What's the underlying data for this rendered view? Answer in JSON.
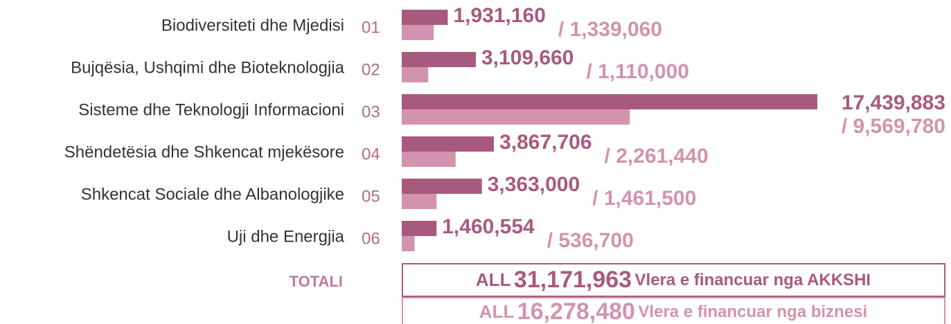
{
  "chart_data": {
    "type": "bar",
    "orientation": "horizontal",
    "categories": [
      "Biodiversiteti dhe Mjedisi",
      "Bujqësia, Ushqimi dhe Bioteknologjia",
      "Sisteme dhe Teknologji Informacioni",
      "Shëndetësia dhe Shkencat mjekësore",
      "Shkencat Sociale dhe Albanologjike",
      "Uji dhe Energjia"
    ],
    "codes": [
      "01",
      "02",
      "03",
      "04",
      "05",
      "06"
    ],
    "series": [
      {
        "color": "#a85a7e",
        "values": [
          1931160,
          3109660,
          17439883,
          3867706,
          3363000,
          1460554
        ],
        "value_labels": [
          "1,931,160",
          "3,109,660",
          "17,439,883",
          "3,867,706",
          "3,363,000",
          "1,460,554"
        ]
      },
      {
        "color": "#d293ae",
        "values": [
          1339060,
          1110000,
          9569780,
          2261440,
          1461500,
          536700
        ],
        "value_labels": [
          "/ 1,339,060",
          "/ 1,110,000",
          "/ 9,569,780",
          "/ 2,261,440",
          "/ 1,461,500",
          "/ 536,700"
        ]
      }
    ],
    "totals": {
      "label": "TOTALI",
      "rows": [
        {
          "currency": "ALL",
          "value": 31171963,
          "value_label": "31,171,963",
          "text": "Vlera e financuar nga AKKSHI"
        },
        {
          "currency": "ALL",
          "value": 16278480,
          "value_label": "16,278,480",
          "text": "Vlera e financuar nga biznesi"
        }
      ]
    }
  }
}
